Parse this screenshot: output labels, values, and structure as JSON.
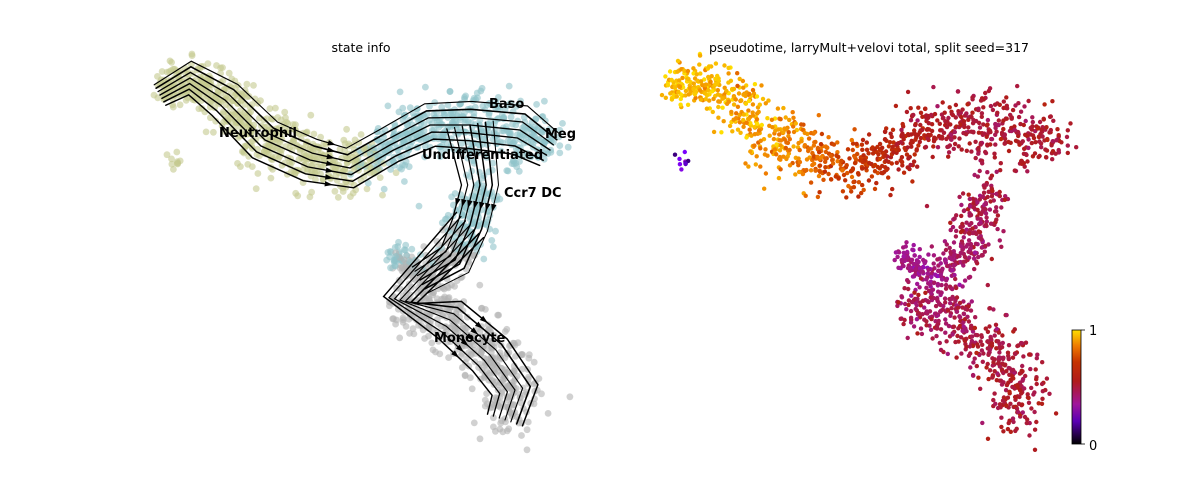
{
  "chart_data": [
    {
      "type": "scatter",
      "title": "state info",
      "xlabel": "",
      "ylabel": "",
      "grid": false,
      "legend": "on data",
      "overlay": "velocity stream lines",
      "categories": [
        "Neutrophil",
        "Baso",
        "Meg",
        "Undifferentiated",
        "Ccr7_DC",
        "Monocyte"
      ],
      "category_labels": {
        "Neutrophil": "Neutrophil",
        "Baso": "Baso",
        "Meg": "Meg",
        "Undifferentiated": "Undifferentiated",
        "Ccr7_DC": "Ccr7 DC",
        "Monocyte": "Monocyte"
      },
      "category_colors": {
        "Neutrophil": "#c5c98f",
        "Baso": "#8fc3c9",
        "Meg": "#8fc3c9",
        "Undifferentiated": "#8fc3c9",
        "Ccr7_DC": "#8fc3c9",
        "Monocyte": "#b3b3b3"
      },
      "stream_color": "#000000"
    },
    {
      "type": "scatter",
      "title": "pseudotime, larryMult+velovi total, split seed=317",
      "xlabel": "",
      "ylabel": "",
      "grid": false,
      "colormap": "gnuplot",
      "colorbar": {
        "min": 0,
        "max": 1,
        "tick_labels": [
          "0",
          "1"
        ],
        "placement": "right"
      },
      "colormap_stops": [
        "#000000",
        "#7a00ff",
        "#a0169b",
        "#b01b1b",
        "#c53300",
        "#ef7a00",
        "#ffde00"
      ]
    }
  ]
}
